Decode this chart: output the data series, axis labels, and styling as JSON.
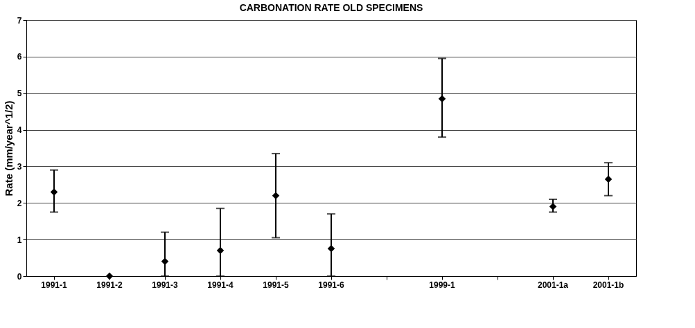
{
  "chart_data": {
    "type": "scatter",
    "title": "CARBONATION RATE OLD SPECIMENS",
    "ylabel": "Rate (mm/year^1/2)",
    "categories": [
      "1991-1",
      "1991-2",
      "1991-3",
      "1991-4",
      "1991-5",
      "1991-6",
      null,
      "1999-1",
      null,
      "2001-1a",
      "2001-1b"
    ],
    "values": [
      2.3,
      0,
      0.4,
      0.7,
      2.2,
      0.75,
      null,
      4.85,
      null,
      1.9,
      2.65
    ],
    "errors": [
      [
        1.75,
        2.9
      ],
      null,
      [
        0,
        1.2
      ],
      [
        0,
        1.85
      ],
      [
        1.05,
        3.35
      ],
      [
        0,
        1.7
      ],
      null,
      [
        3.8,
        5.95
      ],
      null,
      [
        1.75,
        2.1
      ],
      [
        2.2,
        3.1
      ]
    ],
    "color": "#000000",
    "marker": "diamond",
    "ylim": [
      0,
      7
    ],
    "yticks": [
      0,
      1,
      2,
      3,
      4,
      5,
      6,
      7
    ],
    "grid": "y"
  }
}
